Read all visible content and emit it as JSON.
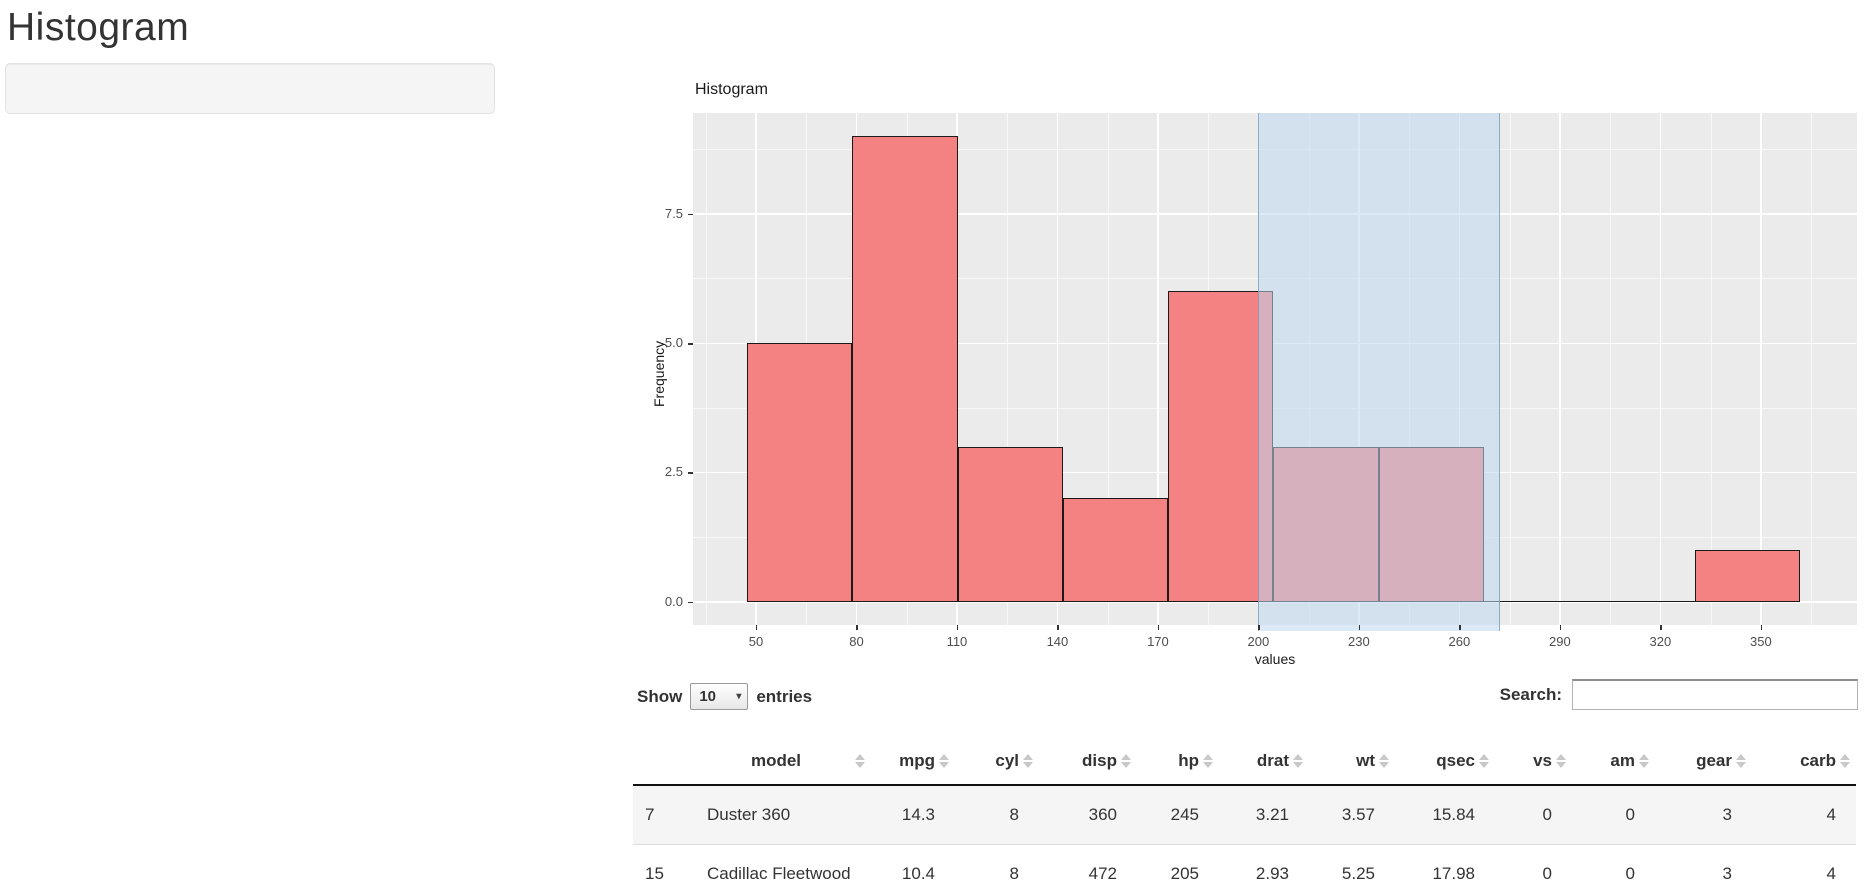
{
  "page": {
    "title": "Histogram"
  },
  "chart_data": {
    "type": "histogram",
    "title": "Histogram",
    "xlabel": "values",
    "ylabel": "Frequency",
    "bins": {
      "start": 47.3,
      "width": 31.44
    },
    "counts": [
      5,
      9,
      3,
      2,
      6,
      3,
      3,
      0,
      0,
      1
    ],
    "x_ticks": [
      50,
      80,
      110,
      140,
      170,
      200,
      230,
      260,
      290,
      320,
      350
    ],
    "y_ticks": [
      0.0,
      2.5,
      5.0,
      7.5
    ],
    "y_tick_labels": [
      "0.0",
      "2.5",
      "5.0",
      "7.5"
    ],
    "xlim": [
      31.2,
      378.7
    ],
    "ylim": [
      -0.45,
      9.45
    ],
    "grid": true,
    "brush": {
      "xmin": 200,
      "xmax": 272
    },
    "colors": {
      "bar_fill": "#F48282",
      "bar_stroke": "#1a1a1a",
      "panel_bg": "#EBEBEB",
      "grid": "#FFFFFF",
      "brush_fill": "rgba(190,216,238,0.55)",
      "brush_stroke": "rgba(100,140,175,0.65)"
    }
  },
  "controls": {
    "show_label": "Show",
    "page_length": "10",
    "entries_label": "entries",
    "dropdown_arrow_icon": "▾",
    "search_label": "Search:",
    "search_value": ""
  },
  "table": {
    "columns": [
      "",
      "model",
      "mpg",
      "cyl",
      "disp",
      "hp",
      "drat",
      "wt",
      "qsec",
      "vs",
      "am",
      "gear",
      "carb"
    ],
    "rows": [
      {
        "row_name": "7",
        "cells": [
          "Duster 360",
          "14.3",
          "8",
          "360",
          "245",
          "3.21",
          "3.57",
          "15.84",
          "0",
          "0",
          "3",
          "4"
        ]
      },
      {
        "row_name": "15",
        "cells": [
          "Cadillac Fleetwood",
          "10.4",
          "8",
          "472",
          "205",
          "2.93",
          "5.25",
          "17.98",
          "0",
          "0",
          "3",
          "4"
        ]
      }
    ]
  }
}
